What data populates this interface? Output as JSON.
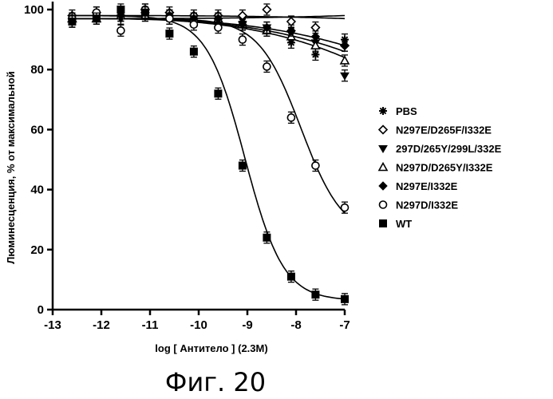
{
  "chart_data": {
    "type": "scatter",
    "xlabel": "log [ Антитело ] (2.3M)",
    "ylabel": "Люминесценция, % от максимальной",
    "xlim": [
      -13,
      -7
    ],
    "ylim": [
      0,
      100
    ],
    "x_ticks": [
      "-13",
      "-12",
      "-11",
      "-10",
      "-9",
      "-8",
      "-7"
    ],
    "y_ticks": [
      "0",
      "20",
      "40",
      "60",
      "80",
      "100"
    ],
    "grid": false,
    "legend_position": "right",
    "caption": "Фиг. 20",
    "series": [
      {
        "name": "PBS",
        "marker": "asterisk",
        "x": [
          -12.6,
          -12.1,
          -11.6,
          -11.1,
          -10.6,
          -10.1,
          -9.6,
          -9.1,
          -8.6,
          -8.1,
          -7.6,
          -7.0
        ],
        "y": [
          97,
          98,
          98,
          99,
          98,
          97,
          97,
          96,
          93,
          89,
          85,
          90
        ],
        "fit": [
          97,
          98
        ]
      },
      {
        "name": "N297E/D265F/I332E",
        "marker": "diamond-open",
        "x": [
          -12.6,
          -12.1,
          -11.6,
          -11.1,
          -10.6,
          -10.1,
          -9.6,
          -9.1,
          -8.6,
          -8.1,
          -7.6,
          -7.0
        ],
        "y": [
          98,
          99,
          98,
          100,
          99,
          98,
          98,
          98,
          100,
          96,
          94,
          88
        ],
        "fit": [
          98,
          97
        ]
      },
      {
        "name": "297D/265Y/299L/332E",
        "marker": "triangle-down-filled",
        "x": [
          -12.6,
          -12.1,
          -11.6,
          -11.1,
          -10.6,
          -10.1,
          -9.6,
          -9.1,
          -8.6,
          -8.1,
          -7.6,
          -7.0
        ],
        "y": [
          96,
          97,
          97,
          98,
          97,
          97,
          96,
          95,
          94,
          92,
          89,
          78
        ],
        "fit": [
          97,
          84
        ]
      },
      {
        "name": "N297D/D265Y/I332E",
        "marker": "triangle-up-open",
        "x": [
          -12.6,
          -12.1,
          -11.6,
          -11.1,
          -10.6,
          -10.1,
          -9.6,
          -9.1,
          -8.6,
          -8.1,
          -7.6,
          -7.0
        ],
        "y": [
          97,
          97,
          98,
          98,
          98,
          97,
          97,
          95,
          93,
          91,
          88,
          83
        ],
        "fit": [
          97,
          86
        ]
      },
      {
        "name": "N297E/I332E",
        "marker": "diamond-filled",
        "x": [
          -12.6,
          -12.1,
          -11.6,
          -11.1,
          -10.6,
          -10.1,
          -9.6,
          -9.1,
          -8.6,
          -8.1,
          -7.6,
          -7.0
        ],
        "y": [
          96,
          97,
          98,
          99,
          98,
          97,
          97,
          95,
          94,
          93,
          91,
          88
        ],
        "fit": [
          97,
          88
        ]
      },
      {
        "name": "N297D/I332E",
        "marker": "circle-open",
        "x": [
          -12.6,
          -12.1,
          -11.6,
          -11.1,
          -10.6,
          -10.1,
          -9.6,
          -9.1,
          -8.6,
          -8.1,
          -7.6,
          -7.0
        ],
        "y": [
          97,
          99,
          93,
          100,
          97,
          95,
          94,
          90,
          81,
          64,
          48,
          34
        ],
        "fit": [
          97,
          24,
          -7.9,
          1.0
        ]
      },
      {
        "name": "WT",
        "marker": "square-filled",
        "x": [
          -12.6,
          -12.1,
          -11.6,
          -11.1,
          -10.6,
          -10.1,
          -9.6,
          -9.1,
          -8.6,
          -8.1,
          -7.6,
          -7.0
        ],
        "y": [
          96,
          97,
          100,
          99,
          92,
          86,
          72,
          48,
          24,
          11,
          5,
          3.5
        ],
        "fit": [
          98,
          3,
          -9.05,
          1.1
        ]
      }
    ]
  }
}
